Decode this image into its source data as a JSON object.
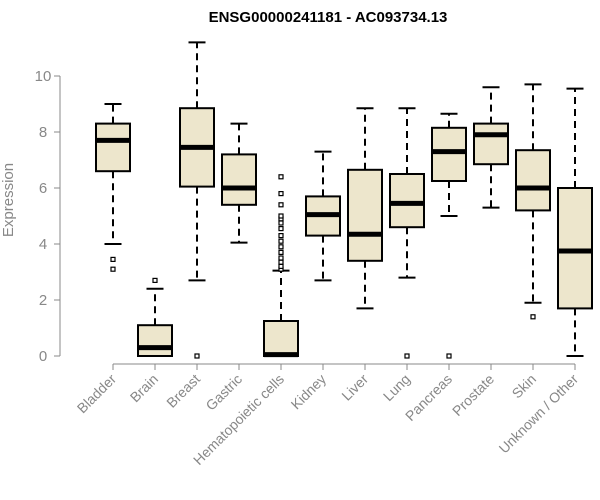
{
  "chart_data": {
    "type": "box",
    "title": "ENSG00000241181 - AC093734.13",
    "xlabel": "",
    "ylabel": "Expression",
    "ylim": [
      0,
      10.5
    ],
    "yticks": [
      "0",
      "2",
      "4",
      "6",
      "8",
      "10"
    ],
    "box_fill": "#ede6cc",
    "stroke": "#000000",
    "categories": [
      "Bladder",
      "Brain",
      "Breast",
      "Gastric",
      "Hematopoietic cells",
      "Kidney",
      "Liver",
      "Lung",
      "Pancreas",
      "Prostate",
      "Skin",
      "Unknown / Other"
    ],
    "boxes": [
      {
        "whisker_low": 4.0,
        "q1": 6.6,
        "median": 7.7,
        "q3": 8.3,
        "whisker_high": 9.0,
        "outliers": [
          3.1,
          3.45
        ]
      },
      {
        "whisker_low": 0.0,
        "q1": 0.0,
        "median": 0.3,
        "q3": 1.1,
        "whisker_high": 2.4,
        "outliers": [
          2.7
        ]
      },
      {
        "whisker_low": 2.7,
        "q1": 6.05,
        "median": 7.45,
        "q3": 8.85,
        "whisker_high": 11.2,
        "outliers": [
          0.0
        ]
      },
      {
        "whisker_low": 4.05,
        "q1": 5.4,
        "median": 6.0,
        "q3": 7.2,
        "whisker_high": 8.3,
        "outliers": []
      },
      {
        "whisker_low": 0.0,
        "q1": 0.0,
        "median": 0.05,
        "q3": 1.25,
        "whisker_high": 3.05,
        "outliers": [
          3.1,
          3.2,
          3.35,
          3.5,
          3.7,
          3.9,
          4.1,
          4.3,
          4.55,
          4.75,
          4.9,
          5.0,
          5.4,
          5.8,
          6.4
        ]
      },
      {
        "whisker_low": 2.7,
        "q1": 4.3,
        "median": 5.05,
        "q3": 5.7,
        "whisker_high": 7.3,
        "outliers": []
      },
      {
        "whisker_low": 1.7,
        "q1": 3.4,
        "median": 4.35,
        "q3": 6.65,
        "whisker_high": 8.85,
        "outliers": []
      },
      {
        "whisker_low": 2.8,
        "q1": 4.6,
        "median": 5.45,
        "q3": 6.5,
        "whisker_high": 8.85,
        "outliers": [
          0.0
        ]
      },
      {
        "whisker_low": 5.0,
        "q1": 6.25,
        "median": 7.3,
        "q3": 8.15,
        "whisker_high": 8.65,
        "outliers": [
          0.0
        ]
      },
      {
        "whisker_low": 5.3,
        "q1": 6.85,
        "median": 7.9,
        "q3": 8.3,
        "whisker_high": 9.6,
        "outliers": []
      },
      {
        "whisker_low": 1.9,
        "q1": 5.2,
        "median": 6.0,
        "q3": 7.35,
        "whisker_high": 9.7,
        "outliers": [
          1.4
        ]
      },
      {
        "whisker_low": 0.0,
        "q1": 1.7,
        "median": 3.75,
        "q3": 6.0,
        "whisker_high": 9.55,
        "outliers": []
      }
    ]
  }
}
